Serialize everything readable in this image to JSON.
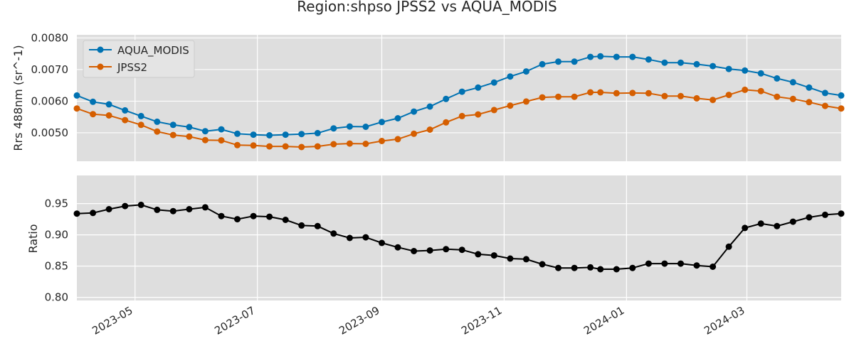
{
  "title": "Region:shpso JPSS2 vs AQUA_MODIS",
  "colors": {
    "aqua": "#0072b2",
    "jpss2": "#d55e00",
    "ratio": "#000000",
    "plot_bg": "#dedede",
    "grid": "#ffffff"
  },
  "chart_data": [
    {
      "type": "line",
      "ylabel": "Rrs 488nm (sr^-1)",
      "xlabel": "",
      "ylim": [
        0.0041,
        0.0081
      ],
      "yticks": [
        0.005,
        0.006,
        0.007,
        0.008
      ],
      "ytick_labels": [
        "0.0050",
        "0.0060",
        "0.0070",
        "0.0080"
      ],
      "grid": true,
      "legend_position": "top-left",
      "series": [
        {
          "name": "AQUA_MODIS",
          "color": "#0072b2",
          "values": [
            0.00618,
            0.00598,
            0.0059,
            0.00571,
            0.00553,
            0.00535,
            0.00525,
            0.00518,
            0.00505,
            0.00511,
            0.00497,
            0.00494,
            0.00492,
            0.00494,
            0.00496,
            0.00499,
            0.00514,
            0.0052,
            0.00519,
            0.00534,
            0.00546,
            0.00567,
            0.00583,
            0.00607,
            0.0063,
            0.00643,
            0.00659,
            0.00678,
            0.00694,
            0.00717,
            0.00725,
            0.00725,
            0.0074,
            0.00742,
            0.0074,
            0.0074,
            0.00732,
            0.00722,
            0.00722,
            0.00717,
            0.00711,
            0.00702,
            0.00697,
            0.00688,
            0.00672,
            0.0066,
            0.00643,
            0.00626,
            0.00618
          ]
        },
        {
          "name": "JPSS2",
          "color": "#d55e00",
          "values": [
            0.00577,
            0.00559,
            0.00555,
            0.0054,
            0.00525,
            0.00504,
            0.00493,
            0.00488,
            0.00477,
            0.00476,
            0.00461,
            0.0046,
            0.00457,
            0.00457,
            0.00455,
            0.00457,
            0.00464,
            0.00466,
            0.00465,
            0.00474,
            0.0048,
            0.00497,
            0.0051,
            0.00533,
            0.00553,
            0.00558,
            0.00572,
            0.00586,
            0.00599,
            0.00612,
            0.00614,
            0.00614,
            0.00628,
            0.00628,
            0.00625,
            0.00626,
            0.00625,
            0.00616,
            0.00616,
            0.00609,
            0.00604,
            0.0062,
            0.00636,
            0.00632,
            0.00614,
            0.00607,
            0.00597,
            0.00585,
            0.00577
          ]
        }
      ]
    },
    {
      "type": "line",
      "ylabel": "Ratio",
      "xlabel": "",
      "ylim": [
        0.795,
        0.995
      ],
      "yticks": [
        0.8,
        0.85,
        0.9,
        0.95
      ],
      "ytick_labels": [
        "0.80",
        "0.85",
        "0.90",
        "0.95"
      ],
      "grid": true,
      "series": [
        {
          "color": "#000000",
          "values": [
            0.934,
            0.935,
            0.941,
            0.946,
            0.948,
            0.94,
            0.938,
            0.941,
            0.944,
            0.93,
            0.925,
            0.93,
            0.929,
            0.924,
            0.915,
            0.914,
            0.902,
            0.895,
            0.896,
            0.887,
            0.88,
            0.874,
            0.875,
            0.877,
            0.876,
            0.869,
            0.867,
            0.862,
            0.861,
            0.853,
            0.847,
            0.847,
            0.848,
            0.845,
            0.845,
            0.847,
            0.854,
            0.854,
            0.854,
            0.851,
            0.849,
            0.881,
            0.911,
            0.918,
            0.914,
            0.921,
            0.928,
            0.932,
            0.934
          ]
        }
      ]
    }
  ],
  "x_dates": [
    "2023-04-02",
    "2023-04-10",
    "2023-04-18",
    "2023-04-26",
    "2023-05-04",
    "2023-05-12",
    "2023-05-20",
    "2023-05-28",
    "2023-06-05",
    "2023-06-13",
    "2023-06-21",
    "2023-06-29",
    "2023-07-07",
    "2023-07-15",
    "2023-07-23",
    "2023-07-31",
    "2023-08-08",
    "2023-08-16",
    "2023-08-24",
    "2023-09-01",
    "2023-09-09",
    "2023-09-17",
    "2023-09-25",
    "2023-10-03",
    "2023-10-11",
    "2023-10-19",
    "2023-10-27",
    "2023-11-04",
    "2023-11-12",
    "2023-11-20",
    "2023-11-28",
    "2023-12-06",
    "2023-12-14",
    "2023-12-19",
    "2023-12-27",
    "2024-01-04",
    "2024-01-12",
    "2024-01-20",
    "2024-01-28",
    "2024-02-05",
    "2024-02-13",
    "2024-02-21",
    "2024-02-29",
    "2024-03-08",
    "2024-03-16",
    "2024-03-24",
    "2024-04-01",
    "2024-04-09",
    "2024-04-17"
  ],
  "x_range": [
    "2023-04-02",
    "2024-04-17"
  ],
  "xtick_dates": [
    "2023-05-01",
    "2023-07-01",
    "2023-09-01",
    "2023-11-01",
    "2024-01-01",
    "2024-03-01"
  ],
  "xtick_labels": [
    "2023-05",
    "2023-07",
    "2023-09",
    "2023-11",
    "2024-01",
    "2024-03"
  ]
}
